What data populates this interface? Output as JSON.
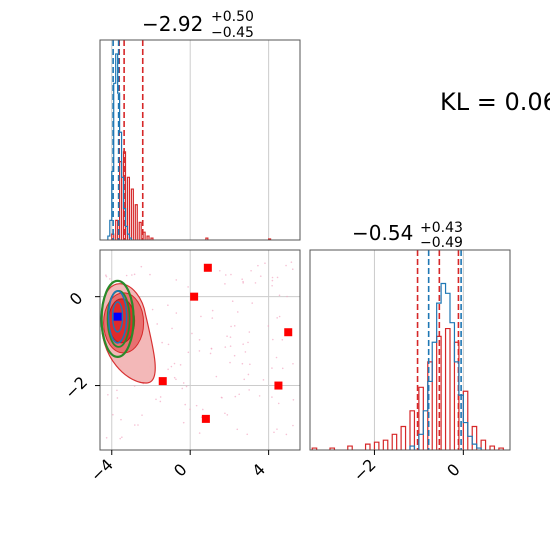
{
  "chart_data": [
    {
      "type": "histogram",
      "panel": "marginal-x",
      "title": {
        "value": "−2.92",
        "plus": "+0.50",
        "minus": "−0.45"
      },
      "xlim": [
        -4.6,
        5.6
      ],
      "grid": true,
      "series": [
        {
          "color": "#1f77b4",
          "bins": [
            [
              -4.2,
              0.02
            ],
            [
              -4.1,
              0.1
            ],
            [
              -4.0,
              0.35
            ],
            [
              -3.9,
              0.8
            ],
            [
              -3.8,
              0.95
            ],
            [
              -3.7,
              0.75
            ],
            [
              -3.6,
              0.55
            ],
            [
              -3.5,
              0.32
            ],
            [
              -3.4,
              0.16
            ],
            [
              -3.3,
              0.07
            ],
            [
              -3.2,
              0.03
            ],
            [
              -3.1,
              0.01
            ]
          ],
          "quantiles": [
            -3.93,
            -3.65
          ]
        },
        {
          "color": "#d62728",
          "bins": [
            [
              -4.0,
              0.03
            ],
            [
              -3.8,
              0.1
            ],
            [
              -3.6,
              0.4
            ],
            [
              -3.4,
              0.45
            ],
            [
              -3.2,
              0.32
            ],
            [
              -3.0,
              0.26
            ],
            [
              -2.8,
              0.18
            ],
            [
              -2.6,
              0.09
            ],
            [
              -2.4,
              0.04
            ],
            [
              -2.2,
              0.02
            ],
            [
              -2.0,
              0.01
            ],
            [
              0.8,
              0.01
            ],
            [
              4.0,
              0.005
            ]
          ],
          "quantiles": [
            -3.62,
            -3.37,
            -2.42
          ]
        }
      ]
    },
    {
      "type": "scatter",
      "panel": "joint",
      "xlim": [
        -4.6,
        5.6
      ],
      "ylim": [
        -3.45,
        1.05
      ],
      "x_ticks": [
        "−4",
        "0",
        "4"
      ],
      "y_ticks": [
        "−2",
        "0"
      ],
      "grid": true,
      "red_markers": [
        [
          0.9,
          0.65
        ],
        [
          0.2,
          0.0
        ],
        [
          5.0,
          -0.8
        ],
        [
          -1.4,
          -1.9
        ],
        [
          4.5,
          -2.0
        ],
        [
          0.8,
          -2.75
        ]
      ],
      "blue_marker": [
        -3.7,
        -0.45
      ],
      "contour_center": [
        -3.6,
        -0.5
      ]
    },
    {
      "type": "histogram",
      "panel": "marginal-y",
      "title": {
        "value": "−0.54",
        "plus": "+0.43",
        "minus": "−0.49"
      },
      "xlim": [
        -3.45,
        1.05
      ],
      "x_ticks": [
        "−2",
        "0"
      ],
      "grid": true,
      "series": [
        {
          "color": "#1f77b4",
          "bins": [
            [
              -1.2,
              0.02
            ],
            [
              -1.0,
              0.08
            ],
            [
              -0.9,
              0.2
            ],
            [
              -0.8,
              0.35
            ],
            [
              -0.7,
              0.55
            ],
            [
              -0.6,
              0.75
            ],
            [
              -0.5,
              0.85
            ],
            [
              -0.4,
              0.8
            ],
            [
              -0.3,
              0.65
            ],
            [
              -0.2,
              0.45
            ],
            [
              -0.1,
              0.28
            ],
            [
              0.0,
              0.14
            ],
            [
              0.1,
              0.07
            ],
            [
              0.2,
              0.03
            ],
            [
              0.3,
              0.01
            ]
          ],
          "quantiles": [
            -0.78,
            -0.05
          ]
        },
        {
          "color": "#d62728",
          "bins": [
            [
              -3.4,
              0.01
            ],
            [
              -3.0,
              0.01
            ],
            [
              -2.6,
              0.02
            ],
            [
              -2.2,
              0.03
            ],
            [
              -2.0,
              0.04
            ],
            [
              -1.8,
              0.05
            ],
            [
              -1.6,
              0.08
            ],
            [
              -1.4,
              0.12
            ],
            [
              -1.2,
              0.2
            ],
            [
              -1.0,
              0.32
            ],
            [
              -0.8,
              0.45
            ],
            [
              -0.6,
              0.58
            ],
            [
              -0.4,
              0.62
            ],
            [
              -0.2,
              0.55
            ],
            [
              0.0,
              0.3
            ],
            [
              0.2,
              0.12
            ],
            [
              0.4,
              0.05
            ],
            [
              0.6,
              0.02
            ],
            [
              0.8,
              0.01
            ]
          ],
          "quantiles": [
            -1.03,
            -0.54,
            -0.11
          ]
        }
      ]
    }
  ],
  "kl_label": "KL = 0.06"
}
